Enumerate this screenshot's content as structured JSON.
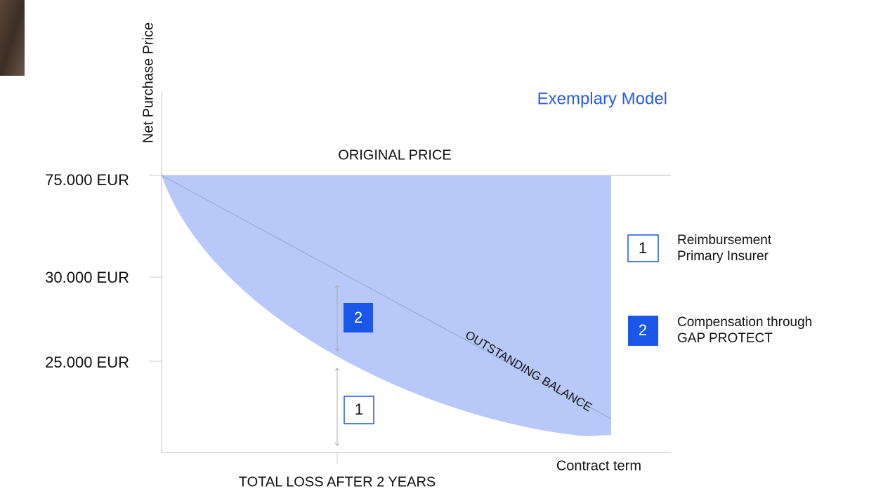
{
  "y_axis_title": "Net Purchase Price",
  "model_label": "Exemplary Model",
  "original_price_label": "ORIGINAL PRICE",
  "y_labels": [
    "75.000 EUR",
    "30.000 EUR",
    "25.000 EUR"
  ],
  "line_label": "OUTSTANDING BALANCE",
  "x_axis_title": "Contract term",
  "event_label": "TOTAL LOSS AFTER 2 YEARS",
  "markers": [
    "2",
    "1"
  ],
  "legend": [
    {
      "marker": "1",
      "lines": [
        "Reimbursement",
        "Primary Insurer"
      ]
    },
    {
      "marker": "2",
      "lines": [
        "Compensation through",
        "GAP PROTECT"
      ]
    }
  ]
}
